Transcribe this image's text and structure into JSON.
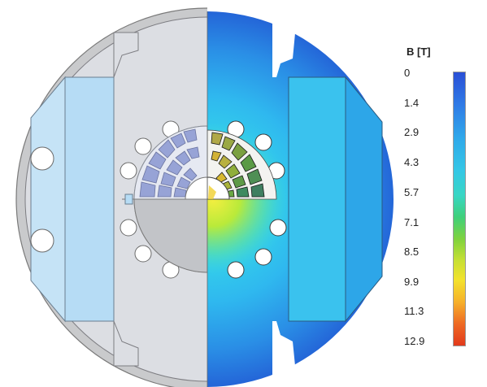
{
  "legend": {
    "title": "B [T]",
    "ticks": [
      "0",
      "1.4",
      "2.9",
      "4.3",
      "5.7",
      "7.1",
      "8.5",
      "9.9",
      "11.3",
      "12.9"
    ]
  }
}
